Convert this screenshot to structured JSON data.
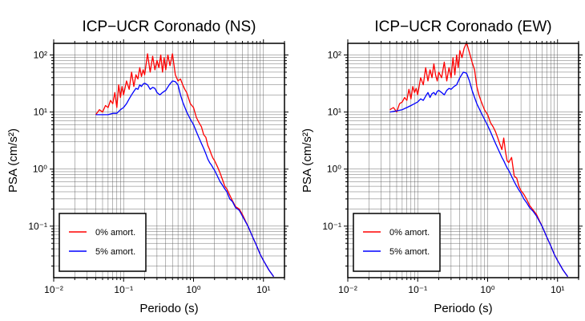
{
  "chart_data": [
    {
      "type": "line",
      "title": "ICP−UCR Coronado (NS)",
      "xlabel": "Periodo (s)",
      "ylabel": "PSA (cm/s²)",
      "xscale": "log",
      "yscale": "log",
      "xlim": [
        0.01,
        20
      ],
      "ylim": [
        0.0125,
        160
      ],
      "grid": true,
      "legend_position": "bottom-left",
      "x_tick_labels": [
        "10⁻²",
        "10⁻¹",
        "10⁰",
        "10¹"
      ],
      "y_tick_labels": [
        "10⁻¹",
        "10⁰",
        "10¹",
        "10²"
      ],
      "series": [
        {
          "name": "0% amort.",
          "color": "#ff0000",
          "x": [
            0.04,
            0.045,
            0.05,
            0.055,
            0.06,
            0.065,
            0.07,
            0.075,
            0.08,
            0.085,
            0.09,
            0.095,
            0.1,
            0.11,
            0.12,
            0.13,
            0.14,
            0.15,
            0.16,
            0.17,
            0.18,
            0.19,
            0.2,
            0.22,
            0.24,
            0.26,
            0.28,
            0.3,
            0.32,
            0.34,
            0.36,
            0.38,
            0.4,
            0.43,
            0.46,
            0.5,
            0.55,
            0.6,
            0.65,
            0.7,
            0.75,
            0.8,
            0.9,
            1.0,
            1.1,
            1.2,
            1.3,
            1.4,
            1.5,
            1.6,
            1.7,
            1.8,
            1.9,
            2.0,
            2.2,
            2.4,
            2.6,
            2.8,
            3.0,
            3.3,
            3.6,
            4.0,
            4.5,
            5.0,
            6.0,
            7.0,
            8.0,
            9.0,
            10.0,
            12.0,
            14.0
          ],
          "values": [
            9,
            11,
            10,
            13,
            12,
            16,
            14,
            22,
            12,
            30,
            18,
            28,
            20,
            35,
            25,
            50,
            28,
            45,
            38,
            60,
            42,
            55,
            45,
            105,
            50,
            95,
            55,
            80,
            60,
            100,
            50,
            90,
            55,
            100,
            65,
            105,
            45,
            35,
            38,
            30,
            25,
            22,
            14,
            12,
            8,
            6.5,
            5.5,
            4.0,
            3.6,
            2.6,
            2.2,
            1.8,
            1.55,
            1.4,
            1.1,
            0.85,
            0.65,
            0.5,
            0.45,
            0.35,
            0.28,
            0.22,
            0.2,
            0.16,
            0.1,
            0.065,
            0.045,
            0.032,
            0.025,
            0.017,
            0.013
          ]
        },
        {
          "name": "5% amort.",
          "color": "#0000ff",
          "x": [
            0.04,
            0.05,
            0.06,
            0.07,
            0.08,
            0.09,
            0.1,
            0.11,
            0.12,
            0.13,
            0.14,
            0.15,
            0.16,
            0.17,
            0.18,
            0.19,
            0.2,
            0.22,
            0.24,
            0.26,
            0.28,
            0.3,
            0.33,
            0.36,
            0.4,
            0.45,
            0.5,
            0.55,
            0.6,
            0.65,
            0.7,
            0.8,
            0.9,
            1.0,
            1.1,
            1.2,
            1.3,
            1.4,
            1.5,
            1.6,
            1.7,
            1.8,
            1.9,
            2.0,
            2.2,
            2.4,
            2.6,
            2.8,
            3.0,
            3.3,
            3.6,
            4.0,
            4.5,
            5.0,
            6.0,
            7.0,
            8.0,
            9.0,
            10.0,
            12.0,
            14.0
          ],
          "values": [
            9,
            9,
            9,
            9.5,
            9.5,
            11,
            12,
            14,
            17,
            20,
            23,
            26,
            25,
            30,
            28,
            31,
            32,
            30,
            25,
            27,
            26,
            22,
            20,
            22,
            24,
            30,
            35,
            34,
            30,
            20,
            15,
            10,
            7.5,
            6,
            4.5,
            3.5,
            2.8,
            2.3,
            1.85,
            1.5,
            1.3,
            1.18,
            1.05,
            0.95,
            0.75,
            0.6,
            0.52,
            0.45,
            0.4,
            0.3,
            0.27,
            0.21,
            0.19,
            0.15,
            0.1,
            0.065,
            0.045,
            0.032,
            0.025,
            0.017,
            0.013
          ]
        }
      ]
    },
    {
      "type": "line",
      "title": "ICP−UCR Coronado (EW)",
      "xlabel": "Periodo (s)",
      "ylabel": "PSA (cm/s²)",
      "xscale": "log",
      "yscale": "log",
      "xlim": [
        0.01,
        20
      ],
      "ylim": [
        0.0125,
        160
      ],
      "grid": true,
      "legend_position": "bottom-left",
      "x_tick_labels": [
        "10⁻²",
        "10⁻¹",
        "10⁰",
        "10¹"
      ],
      "y_tick_labels": [
        "10⁻¹",
        "10⁰",
        "10¹",
        "10²"
      ],
      "series": [
        {
          "name": "0% amort.",
          "color": "#ff0000",
          "x": [
            0.04,
            0.045,
            0.05,
            0.055,
            0.06,
            0.065,
            0.07,
            0.075,
            0.08,
            0.085,
            0.09,
            0.095,
            0.1,
            0.11,
            0.12,
            0.13,
            0.14,
            0.15,
            0.16,
            0.17,
            0.18,
            0.19,
            0.2,
            0.22,
            0.24,
            0.26,
            0.28,
            0.3,
            0.32,
            0.34,
            0.36,
            0.38,
            0.4,
            0.43,
            0.46,
            0.5,
            0.55,
            0.6,
            0.65,
            0.7,
            0.75,
            0.8,
            0.9,
            1.0,
            1.1,
            1.2,
            1.3,
            1.4,
            1.5,
            1.6,
            1.7,
            1.8,
            1.9,
            2.0,
            2.2,
            2.4,
            2.6,
            2.8,
            3.0,
            3.3,
            3.6,
            4.0,
            4.5,
            5.0,
            6.0,
            7.0,
            8.0,
            9.0,
            10.0,
            12.0,
            14.0
          ],
          "values": [
            11,
            12,
            10,
            14,
            15,
            18,
            16,
            25,
            17,
            28,
            22,
            26,
            20,
            40,
            30,
            60,
            35,
            55,
            40,
            70,
            45,
            35,
            50,
            40,
            75,
            35,
            60,
            40,
            90,
            45,
            100,
            60,
            120,
            90,
            130,
            165,
            110,
            75,
            55,
            28,
            20,
            16,
            11,
            9,
            6.5,
            5.5,
            4.5,
            3.5,
            2.7,
            2.2,
            3.5,
            2.0,
            1.4,
            1.3,
            1.6,
            0.75,
            0.7,
            0.5,
            0.42,
            0.36,
            0.3,
            0.23,
            0.19,
            0.16,
            0.1,
            0.065,
            0.045,
            0.032,
            0.025,
            0.017,
            0.013
          ]
        },
        {
          "name": "5% amort.",
          "color": "#0000ff",
          "x": [
            0.04,
            0.05,
            0.06,
            0.07,
            0.08,
            0.09,
            0.1,
            0.11,
            0.12,
            0.13,
            0.14,
            0.15,
            0.16,
            0.17,
            0.18,
            0.19,
            0.2,
            0.22,
            0.24,
            0.26,
            0.28,
            0.3,
            0.33,
            0.36,
            0.4,
            0.45,
            0.5,
            0.55,
            0.6,
            0.65,
            0.7,
            0.8,
            0.9,
            1.0,
            1.1,
            1.2,
            1.3,
            1.4,
            1.5,
            1.6,
            1.7,
            1.8,
            1.9,
            2.0,
            2.2,
            2.4,
            2.6,
            2.8,
            3.0,
            3.3,
            3.6,
            4.0,
            4.5,
            5.0,
            6.0,
            7.0,
            8.0,
            9.0,
            10.0,
            12.0,
            14.0
          ],
          "values": [
            10,
            10.5,
            11,
            12,
            13,
            14,
            15,
            17,
            16,
            19,
            22,
            18,
            21,
            22,
            20,
            23,
            24,
            22,
            20,
            24,
            26,
            25,
            28,
            30,
            40,
            50,
            48,
            35,
            24,
            18,
            14,
            10,
            7.5,
            5.8,
            4.5,
            3.5,
            2.8,
            2.3,
            1.9,
            1.6,
            1.4,
            1.2,
            1.05,
            0.95,
            0.75,
            0.6,
            0.5,
            0.43,
            0.38,
            0.3,
            0.26,
            0.21,
            0.18,
            0.15,
            0.1,
            0.065,
            0.045,
            0.032,
            0.025,
            0.017,
            0.013
          ]
        }
      ]
    }
  ]
}
